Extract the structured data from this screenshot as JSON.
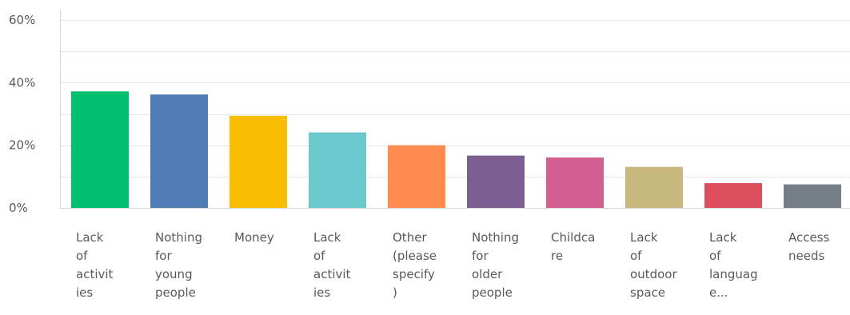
{
  "chart_data": {
    "type": "bar",
    "title": "",
    "xlabel": "",
    "ylabel": "",
    "ylim": [
      0,
      60
    ],
    "y_ticks": [
      {
        "value": 0,
        "label": "0%"
      },
      {
        "value": 20,
        "label": "20%"
      },
      {
        "value": 40,
        "label": "40%"
      },
      {
        "value": 60,
        "label": "60%"
      }
    ],
    "grid": true,
    "legend": "none",
    "categories": [
      "Lack of activities",
      "Nothing for young people",
      "Money",
      "Lack of activities",
      "Other (please specify)",
      "Nothing for older people",
      "Childcare",
      "Lack of outdoor space",
      "Lack of languag e...",
      "Access needs"
    ],
    "category_label_lines": [
      [
        "Lack",
        "of",
        "activit",
        "ies"
      ],
      [
        "Nothing",
        "for",
        "young",
        "people"
      ],
      [
        "Money"
      ],
      [
        "Lack",
        "of",
        "activit",
        "ies"
      ],
      [
        "Other",
        "(please",
        "specify",
        ")"
      ],
      [
        "Nothing",
        "for",
        "older",
        "people"
      ],
      [
        "Childca",
        "re"
      ],
      [
        "Lack",
        "of",
        "outdoor",
        "space"
      ],
      [
        "Lack",
        "of",
        "languag",
        "e..."
      ],
      [
        "Access",
        "needs"
      ]
    ],
    "values": [
      37.2,
      36.2,
      29.4,
      24.1,
      20.0,
      16.7,
      16.1,
      13.1,
      7.9,
      7.5
    ],
    "colors": [
      "#00bf6f",
      "#507cb6",
      "#f9be00",
      "#6bc8cd",
      "#ff8b4f",
      "#7d5e90",
      "#d25f90",
      "#c9b87d",
      "#dd4f5d",
      "#757d87"
    ]
  }
}
